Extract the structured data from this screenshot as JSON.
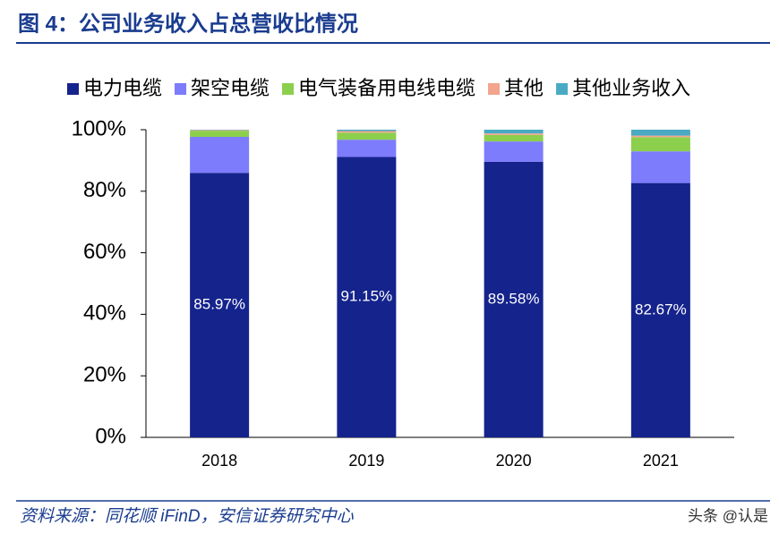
{
  "chart_data": {
    "type": "stacked-bar",
    "title": "图 4：公司业务收入占总营收比情况",
    "source": "资料来源：同花顺 iFinD，安信证券研究中心",
    "watermark": "头条 @认是",
    "categories": [
      "2018",
      "2019",
      "2020",
      "2021"
    ],
    "series": [
      {
        "name": "电力电缆",
        "color": "#15238c",
        "values": [
          85.97,
          91.15,
          89.58,
          82.67
        ],
        "value_labels": [
          "85.97%",
          "91.15%",
          "89.58%",
          "82.67%"
        ]
      },
      {
        "name": "架空电缆",
        "color": "#7c7cfc",
        "values": [
          11.7,
          5.6,
          6.6,
          10.3
        ]
      },
      {
        "name": "电气装备用电线电缆",
        "color": "#8ccf4d",
        "values": [
          2.0,
          2.3,
          2.1,
          4.6
        ]
      },
      {
        "name": "其他",
        "color": "#f2a48d",
        "values": [
          0.2,
          0.5,
          0.5,
          0.5
        ]
      },
      {
        "name": "其他业务收入",
        "color": "#4aaac4",
        "values": [
          0.13,
          0.45,
          1.22,
          1.93
        ]
      }
    ],
    "ylim": [
      0,
      100
    ],
    "yticks": [
      {
        "value": 0,
        "label": "0%"
      },
      {
        "value": 20,
        "label": "20%"
      },
      {
        "value": 40,
        "label": "40%"
      },
      {
        "value": 60,
        "label": "60%"
      },
      {
        "value": 80,
        "label": "80%"
      },
      {
        "value": 100,
        "label": "100%"
      }
    ]
  }
}
